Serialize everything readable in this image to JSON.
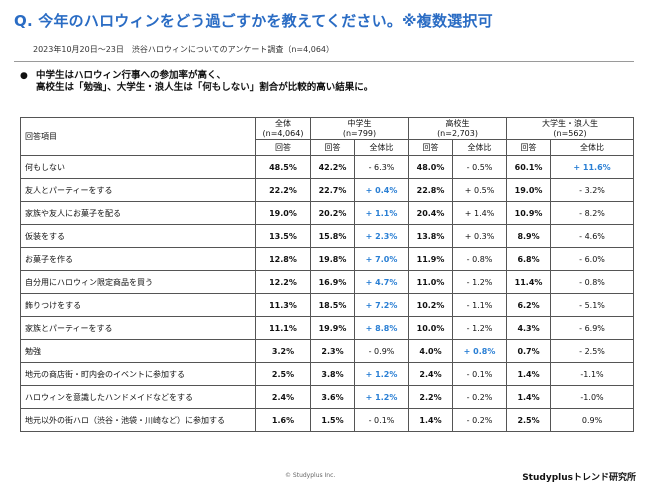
{
  "title": "Q. 今年のハロウィンをどう過ごすかを教えてください。※複数選択可",
  "subtitle": "2023年10月20日〜23日　渋谷ハロウィンについてのアンケート調査（n=4,064）",
  "bullet": "●",
  "summary": {
    "line1": "中学生はハロウィン行事への参加率が高く、",
    "line2": "高校生は「勉強」、大学生・浪人生は「何もしない」割合が比較的高い結果に。"
  },
  "table": {
    "header": {
      "item_label": "回答項目",
      "total": "全体",
      "total_n": "(n=4,064)",
      "groups": [
        {
          "name": "中学生",
          "n": "(n=799)"
        },
        {
          "name": "高校生",
          "n": "(n=2,703)"
        },
        {
          "name": "大学生・浪人生",
          "n": "(n=562)"
        }
      ],
      "answer": "回答",
      "ratio": "全体比"
    },
    "rows": [
      {
        "item": "何もしない",
        "total": "48.5%",
        "jh": "42.2%",
        "jh_d": "- 6.3%",
        "hs": "48.0%",
        "hs_d": "- 0.5%",
        "un": "60.1%",
        "un_d": "+ 11.6%"
      },
      {
        "item": "友人とパーティーをする",
        "total": "22.2%",
        "jh": "22.7%",
        "jh_d": "+ 0.4%",
        "hs": "22.8%",
        "hs_d": "+ 0.5%",
        "un": "19.0%",
        "un_d": "- 3.2%"
      },
      {
        "item": "家族や友人にお菓子を配る",
        "total": "19.0%",
        "jh": "20.2%",
        "jh_d": "+ 1.1%",
        "hs": "20.4%",
        "hs_d": "+ 1.4%",
        "un": "10.9%",
        "un_d": "- 8.2%"
      },
      {
        "item": "仮装をする",
        "total": "13.5%",
        "jh": "15.8%",
        "jh_d": "+ 2.3%",
        "hs": "13.8%",
        "hs_d": "+ 0.3%",
        "un": "8.9%",
        "un_d": "- 4.6%"
      },
      {
        "item": "お菓子を作る",
        "total": "12.8%",
        "jh": "19.8%",
        "jh_d": "+ 7.0%",
        "hs": "11.9%",
        "hs_d": "- 0.8%",
        "un": "6.8%",
        "un_d": "- 6.0%"
      },
      {
        "item": "自分用にハロウィン限定商品を買う",
        "total": "12.2%",
        "jh": "16.9%",
        "jh_d": "+ 4.7%",
        "hs": "11.0%",
        "hs_d": "- 1.2%",
        "un": "11.4%",
        "un_d": "- 0.8%"
      },
      {
        "item": "飾りつけをする",
        "total": "11.3%",
        "jh": "18.5%",
        "jh_d": "+ 7.2%",
        "hs": "10.2%",
        "hs_d": "- 1.1%",
        "un": "6.2%",
        "un_d": "- 5.1%"
      },
      {
        "item": "家族とパーティーをする",
        "total": "11.1%",
        "jh": "19.9%",
        "jh_d": "+ 8.8%",
        "hs": "10.0%",
        "hs_d": "- 1.2%",
        "un": "4.3%",
        "un_d": "- 6.9%"
      },
      {
        "item": "勉強",
        "total": "3.2%",
        "jh": "2.3%",
        "jh_d": "- 0.9%",
        "hs": "4.0%",
        "hs_d": "+ 0.8%",
        "un": "0.7%",
        "un_d": "- 2.5%"
      },
      {
        "item": "地元の商店街・町内会のイベントに参加する",
        "total": "2.5%",
        "jh": "3.8%",
        "jh_d": "+ 1.2%",
        "hs": "2.4%",
        "hs_d": "- 0.1%",
        "un": "1.4%",
        "un_d": "-1.1%"
      },
      {
        "item": "ハロウィンを意識したハンドメイドなどをする",
        "total": "2.4%",
        "jh": "3.6%",
        "jh_d": "+ 1.2%",
        "hs": "2.2%",
        "hs_d": "- 0.2%",
        "un": "1.4%",
        "un_d": "-1.0%"
      },
      {
        "item": "地元以外の街ハロ（渋谷・池袋・川崎など）に参加する",
        "total": "1.6%",
        "jh": "1.5%",
        "jh_d": "- 0.1%",
        "hs": "1.4%",
        "hs_d": "- 0.2%",
        "un": "2.5%",
        "un_d": "0.9%"
      }
    ],
    "highlighted_cells": [
      "jh_d:1",
      "jh_d:2",
      "jh_d:3",
      "jh_d:4",
      "jh_d:5",
      "jh_d:6",
      "jh_d:7",
      "jh_d:9",
      "jh_d:10",
      "hs_d:8",
      "un_d:0"
    ]
  },
  "footer": {
    "copyright": "© Studyplus Inc.",
    "brand": "Studyplusトレンド研究所"
  },
  "colors": {
    "accent": "#2a6cc4",
    "plus": "#2a7fd4"
  }
}
